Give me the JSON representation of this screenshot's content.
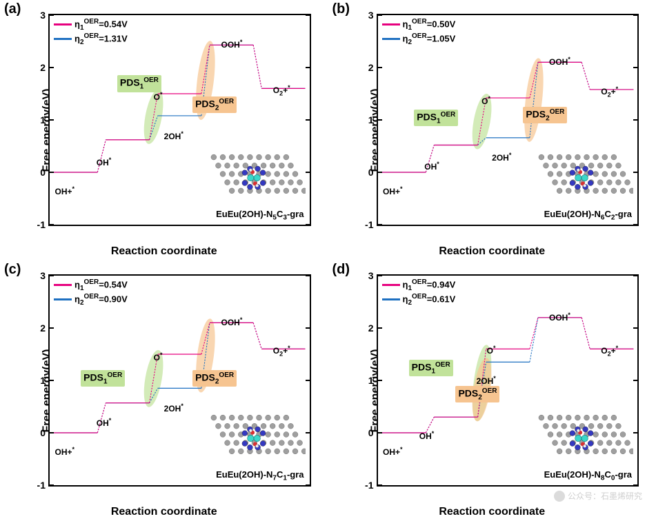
{
  "global": {
    "ylabel": "Free energy(eV)",
    "xlabel": "Reaction coordinate",
    "ylim": [
      -1,
      3
    ],
    "ytick_step": 1,
    "yticks": [
      -1,
      0,
      1,
      2,
      3
    ],
    "background_color": "#ffffff",
    "border_color": "#000000",
    "font_family": "Arial",
    "label_fontsize": 16,
    "tick_fontsize": 14,
    "series1_color": "#e6007e",
    "series2_color": "#1e70c1",
    "line_width_solid": 3,
    "line_width_dash": 2.5,
    "dash_pattern": "6,5",
    "pds1_bg": "#c1e29a",
    "pds2_bg": "#f6c490",
    "pds_text_color": "#000000",
    "pds1_highlight_fill": "#c1e29a",
    "pds2_highlight_fill": "#f6c490",
    "highlight_opacity": 0.7,
    "step_labels": [
      "OH+*",
      "OH*",
      "2OH*",
      "O*",
      "OOH*",
      "O₂+*"
    ],
    "inset_colors": {
      "C": "#9a9a9a",
      "N": "#2a2fbe",
      "Eu": "#30d5c8",
      "O": "#d62728",
      "H": "#eeeeee"
    }
  },
  "panels": [
    {
      "id": "a",
      "label": "(a)",
      "system": "EuEu(2OH)-N5C3-gra",
      "eta1": "0.54V",
      "eta2": "1.31V",
      "series1": [
        0.0,
        0.62,
        1.5,
        2.43,
        1.6
      ],
      "series2": [
        0.0,
        0.62,
        1.08,
        2.43,
        1.6
      ],
      "pds1_step": [
        1,
        2
      ],
      "pds2_step": [
        2,
        3
      ],
      "step_label_positions": {
        "OH+*": [
          0.02,
          -0.25
        ],
        "OH*": [
          0.18,
          0.3
        ],
        "2OH*": [
          0.44,
          0.8
        ],
        "O*": [
          0.4,
          1.55
        ],
        "OOH*": [
          0.66,
          2.55
        ],
        "O2+*": [
          0.86,
          1.68
        ]
      },
      "pds1_pos": [
        0.26,
        1.85
      ],
      "pds2_pos": [
        0.55,
        1.45
      ]
    },
    {
      "id": "b",
      "label": "(b)",
      "system": "EuEu(2OH)-N6C2-gra",
      "eta1": "0.50V",
      "eta2": "1.05V",
      "series1": [
        0.0,
        0.52,
        1.42,
        2.1,
        1.58
      ],
      "series2": [
        0.0,
        0.52,
        0.66,
        2.1,
        1.58
      ],
      "pds1_step": [
        1,
        2
      ],
      "pds2_step": [
        2,
        3
      ],
      "step_label_positions": {
        "OH+*": [
          0.02,
          -0.25
        ],
        "OH*": [
          0.18,
          0.22
        ],
        "2OH*": [
          0.44,
          0.4
        ],
        "O*": [
          0.4,
          1.48
        ],
        "OOH*": [
          0.66,
          2.22
        ],
        "O2+*": [
          0.86,
          1.66
        ]
      },
      "pds1_pos": [
        0.14,
        1.2
      ],
      "pds2_pos": [
        0.56,
        1.25
      ]
    },
    {
      "id": "c",
      "label": "(c)",
      "system": "EuEu(2OH)-N7C1-gra",
      "eta1": "0.54V",
      "eta2": "0.90V",
      "series1": [
        0.0,
        0.57,
        1.5,
        2.1,
        1.6
      ],
      "series2": [
        0.0,
        0.57,
        0.85,
        2.1,
        1.6
      ],
      "pds1_step": [
        1,
        2
      ],
      "pds2_step": [
        2,
        3
      ],
      "step_label_positions": {
        "OH+*": [
          0.02,
          -0.25
        ],
        "OH*": [
          0.18,
          0.3
        ],
        "2OH*": [
          0.44,
          0.58
        ],
        "O*": [
          0.4,
          1.55
        ],
        "OOH*": [
          0.66,
          2.22
        ],
        "O2+*": [
          0.86,
          1.68
        ]
      },
      "pds1_pos": [
        0.12,
        1.2
      ],
      "pds2_pos": [
        0.55,
        1.2
      ]
    },
    {
      "id": "d",
      "label": "(d)",
      "system": "EuEu(2OH)-N8C0-gra",
      "eta1": "0.94V",
      "eta2": "0.61V",
      "series1": [
        0.0,
        0.3,
        1.6,
        2.2,
        1.6
      ],
      "series2": [
        0.0,
        0.3,
        1.35,
        2.2,
        1.6
      ],
      "pds1_step": [
        1,
        2
      ],
      "pds2_step": [
        1,
        2
      ],
      "step_label_positions": {
        "OH+*": [
          0.02,
          -0.25
        ],
        "OH*": [
          0.16,
          0.05
        ],
        "2OH*": [
          0.38,
          1.1
        ],
        "O*": [
          0.42,
          1.68
        ],
        "OOH*": [
          0.66,
          2.32
        ],
        "O2+*": [
          0.86,
          1.68
        ]
      },
      "pds1_pos": [
        0.12,
        1.4
      ],
      "pds2_pos": [
        0.3,
        0.9
      ]
    }
  ],
  "watermark": "公众号：石墨烯研究"
}
